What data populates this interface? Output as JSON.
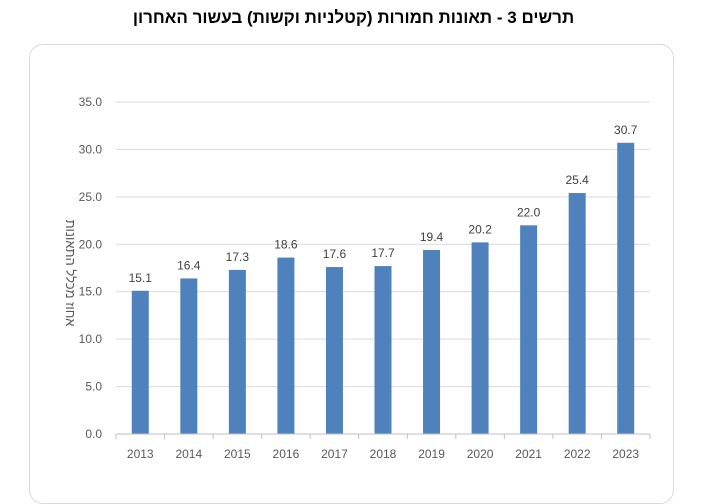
{
  "title": "תרשים 3 - תאונות חמורות (קטלניות וקשות) בעשור האחרון",
  "chart_data": {
    "type": "bar",
    "categories": [
      "2013",
      "2014",
      "2015",
      "2016",
      "2017",
      "2018",
      "2019",
      "2020",
      "2021",
      "2022",
      "2023"
    ],
    "values": [
      15.1,
      16.4,
      17.3,
      18.6,
      17.6,
      17.7,
      19.4,
      20.2,
      22.0,
      25.4,
      30.7
    ],
    "value_labels": [
      "15.1",
      "16.4",
      "17.3",
      "18.6",
      "17.6",
      "17.7",
      "19.4",
      "20.2",
      "22.0",
      "25.4",
      "30.7"
    ],
    "ylabel": "אחוז מכלל התאונות",
    "xlabel": "",
    "ylim": [
      0,
      35
    ],
    "yticks": [
      "0.0",
      "5.0",
      "10.0",
      "15.0",
      "20.0",
      "25.0",
      "30.0",
      "35.0"
    ],
    "grid": true,
    "bar_color": "#4f81bd"
  }
}
